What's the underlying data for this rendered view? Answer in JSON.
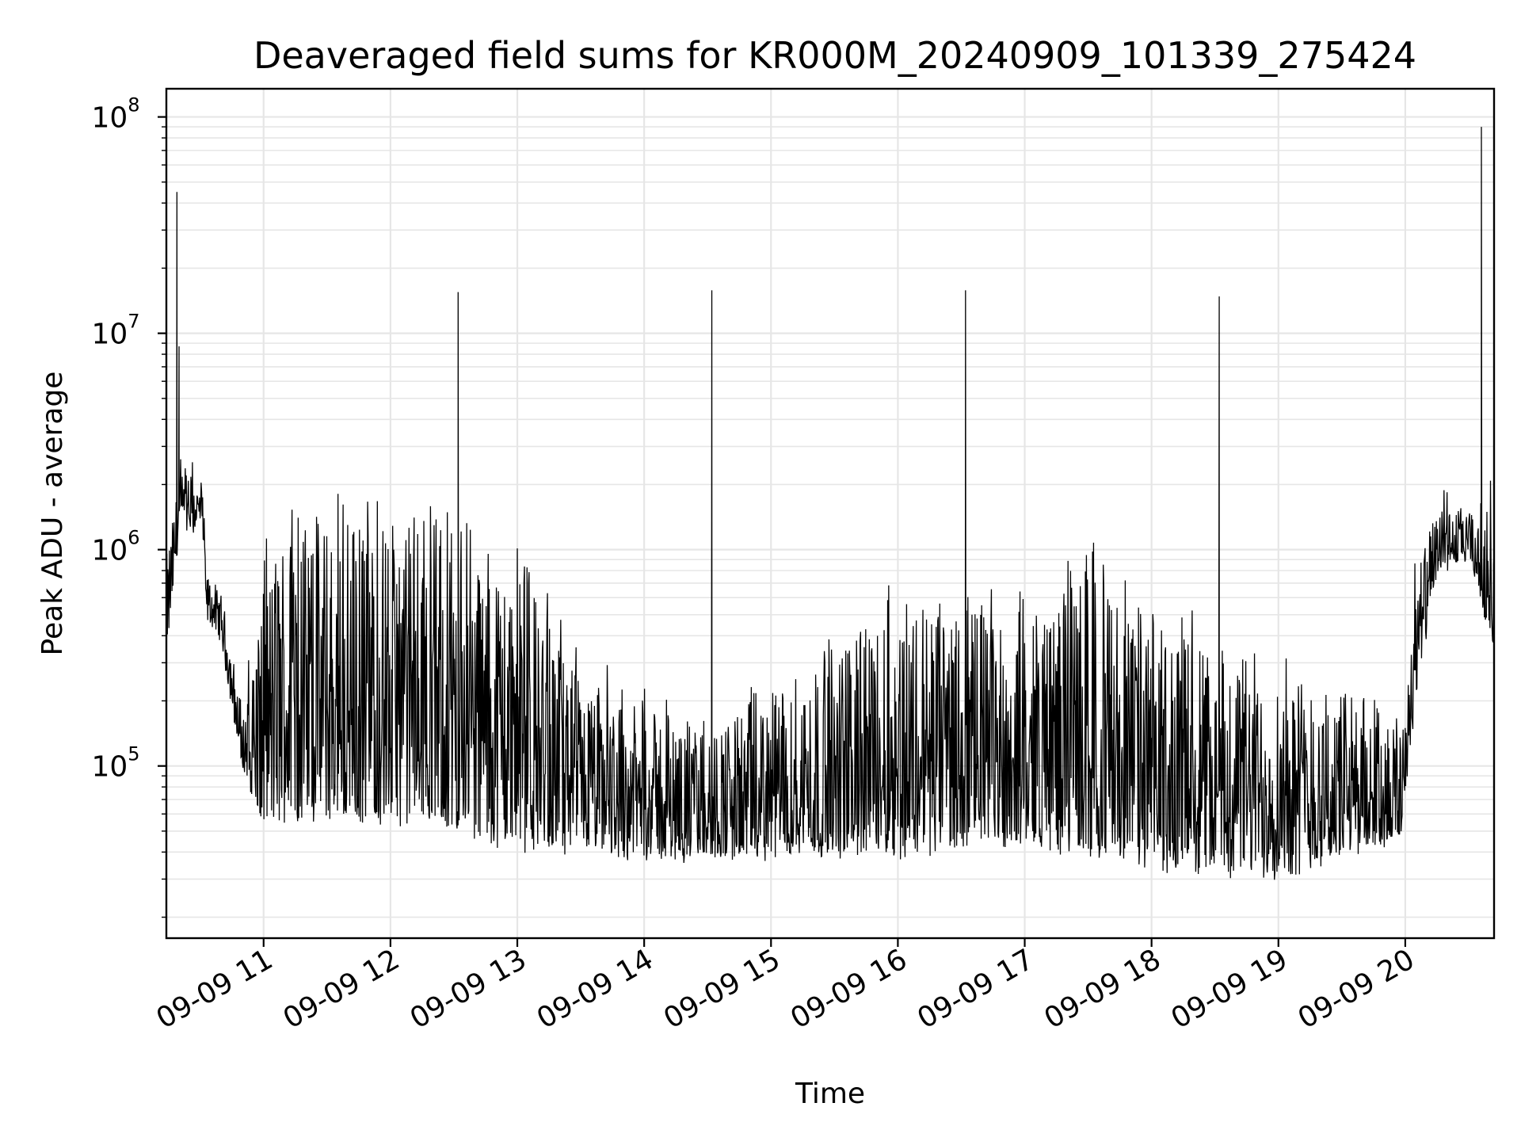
{
  "chart_data": {
    "type": "line",
    "title": "Deaveraged field sums for KR000M_20240909_101339_275424",
    "xlabel": "Time",
    "ylabel": "Peak ADU - average",
    "yscale": "log",
    "grid": true,
    "grid_minor": true,
    "xlim": [
      "2024-09-09 10:14",
      "2024-09-09 20:42"
    ],
    "ylim": [
      16000,
      135000000
    ],
    "x_ticks": [
      "09-09 11",
      "09-09 12",
      "09-09 13",
      "09-09 14",
      "09-09 15",
      "09-09 16",
      "09-09 17",
      "09-09 18",
      "09-09 19",
      "09-09 20"
    ],
    "x_tick_values": [
      "2024-09-09 11:00",
      "2024-09-09 12:00",
      "2024-09-09 13:00",
      "2024-09-09 14:00",
      "2024-09-09 15:00",
      "2024-09-09 16:00",
      "2024-09-09 17:00",
      "2024-09-09 18:00",
      "2024-09-09 19:00",
      "2024-09-09 20:00"
    ],
    "y_ticks": [
      {
        "value": 100000,
        "base": "10",
        "exp": "5"
      },
      {
        "value": 1000000,
        "base": "10",
        "exp": "6"
      },
      {
        "value": 10000000,
        "base": "10",
        "exp": "7"
      },
      {
        "value": 100000000,
        "base": "10",
        "exp": "8"
      }
    ],
    "series": [
      {
        "color": "#000000",
        "x_start": "2024-09-09 10:14",
        "x_end": "2024-09-09 20:42",
        "samples": 2600,
        "envelope": [
          {
            "t": "2024-09-09 10:14",
            "low": 320000,
            "high": 900000
          },
          {
            "t": "2024-09-09 10:20",
            "low": 1200000,
            "high": 2200000
          },
          {
            "t": "2024-09-09 10:31",
            "low": 1300000,
            "high": 2100000
          },
          {
            "t": "2024-09-09 10:33",
            "low": 500000,
            "high": 750000
          },
          {
            "t": "2024-09-09 10:40",
            "low": 400000,
            "high": 600000
          },
          {
            "t": "2024-09-09 10:50",
            "low": 95000,
            "high": 180000
          },
          {
            "t": "2024-09-09 11:00",
            "low": 50000,
            "high": 800000
          },
          {
            "t": "2024-09-09 11:10",
            "low": 60000,
            "high": 1400000
          },
          {
            "t": "2024-09-09 12:20",
            "low": 55000,
            "high": 1400000
          },
          {
            "t": "2024-09-09 13:00",
            "low": 42000,
            "high": 1000000
          },
          {
            "t": "2024-09-09 13:30",
            "low": 40000,
            "high": 250000
          },
          {
            "t": "2024-09-09 14:30",
            "low": 38000,
            "high": 150000
          },
          {
            "t": "2024-09-09 15:30",
            "low": 40000,
            "high": 350000
          },
          {
            "t": "2024-09-09 16:00",
            "low": 40000,
            "high": 650000
          },
          {
            "t": "2024-09-09 17:00",
            "low": 45000,
            "high": 500000
          },
          {
            "t": "2024-09-09 17:30",
            "low": 40000,
            "high": 900000
          },
          {
            "t": "2024-09-09 18:00",
            "low": 35000,
            "high": 500000
          },
          {
            "t": "2024-09-09 19:00",
            "low": 32000,
            "high": 300000
          },
          {
            "t": "2024-09-09 19:58",
            "low": 45000,
            "high": 180000
          },
          {
            "t": "2024-09-09 20:05",
            "low": 200000,
            "high": 800000
          },
          {
            "t": "2024-09-09 20:15",
            "low": 800000,
            "high": 1500000
          },
          {
            "t": "2024-09-09 20:30",
            "low": 900000,
            "high": 1500000
          },
          {
            "t": "2024-09-09 20:42",
            "low": 350000,
            "high": 1600000
          }
        ],
        "spikes": [
          {
            "t": "2024-09-09 10:19",
            "value": 45000000
          },
          {
            "t": "2024-09-09 10:20",
            "value": 8700000
          },
          {
            "t": "2024-09-09 12:32",
            "value": 15500000
          },
          {
            "t": "2024-09-09 14:32",
            "value": 15800000
          },
          {
            "t": "2024-09-09 16:32",
            "value": 15800000
          },
          {
            "t": "2024-09-09 18:32",
            "value": 14800000
          },
          {
            "t": "2024-09-09 20:36",
            "value": 90000000
          }
        ]
      }
    ]
  }
}
